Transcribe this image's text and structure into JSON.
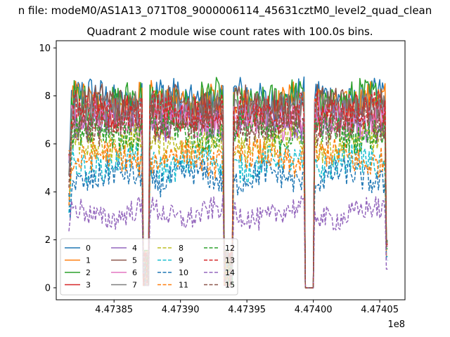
{
  "chart_data": {
    "type": "line",
    "suptitle": "n file: modeM0/AS1A13_071T08_9000006114_45631cztM0_level2_quad_clean",
    "title": "Quadrant 2 module wise count rates with 100.0s bins.",
    "xlabel": "",
    "ylabel": "",
    "x_offset_label": "1e8",
    "xlim": [
      447380650,
      447406900
    ],
    "ylim": [
      -0.5,
      10.3
    ],
    "xticks": [
      4.47385,
      4.4739,
      4.47395,
      4.474,
      4.47405
    ],
    "xtick_labels": [
      "4.47385",
      "4.47390",
      "4.47395",
      "4.47400",
      "4.47405"
    ],
    "yticks": [
      0,
      2,
      4,
      6,
      8,
      10
    ],
    "ytick_labels": [
      "0",
      "2",
      "4",
      "6",
      "8",
      "10"
    ],
    "grid": false,
    "legend_position": "lower-left",
    "time_range": [
      447381600,
      447405600
    ],
    "bin_seconds": 100,
    "gaps": [
      [
        447387150,
        447387600
      ],
      [
        447393300,
        447393950
      ],
      [
        447399350,
        447400050
      ]
    ],
    "series": [
      {
        "name": "0",
        "level": 7.9,
        "color": "#1f77b4",
        "dash": "solid"
      },
      {
        "name": "1",
        "level": 7.7,
        "color": "#ff7f0e",
        "dash": "solid"
      },
      {
        "name": "2",
        "level": 7.8,
        "color": "#2ca02c",
        "dash": "solid"
      },
      {
        "name": "3",
        "level": 7.2,
        "color": "#d62728",
        "dash": "solid"
      },
      {
        "name": "4",
        "level": 6.9,
        "color": "#9467bd",
        "dash": "solid"
      },
      {
        "name": "5",
        "level": 7.6,
        "color": "#8c564b",
        "dash": "solid"
      },
      {
        "name": "6",
        "level": 7.0,
        "color": "#e377c2",
        "dash": "solid"
      },
      {
        "name": "7",
        "level": 7.5,
        "color": "#7f7f7f",
        "dash": "solid"
      },
      {
        "name": "8",
        "level": 6.0,
        "color": "#bcbd22",
        "dash": "dashed"
      },
      {
        "name": "9",
        "level": 5.2,
        "color": "#17becf",
        "dash": "dashed"
      },
      {
        "name": "10",
        "level": 4.6,
        "color": "#1f77b4",
        "dash": "dashed"
      },
      {
        "name": "11",
        "level": 5.4,
        "color": "#ff7f0e",
        "dash": "dashed"
      },
      {
        "name": "12",
        "level": 6.5,
        "color": "#2ca02c",
        "dash": "dashed"
      },
      {
        "name": "13",
        "level": 7.3,
        "color": "#d62728",
        "dash": "dashed"
      },
      {
        "name": "14",
        "level": 3.1,
        "color": "#9467bd",
        "dash": "dashed"
      },
      {
        "name": "15",
        "level": 6.8,
        "color": "#8c564b",
        "dash": "dashed"
      }
    ]
  }
}
